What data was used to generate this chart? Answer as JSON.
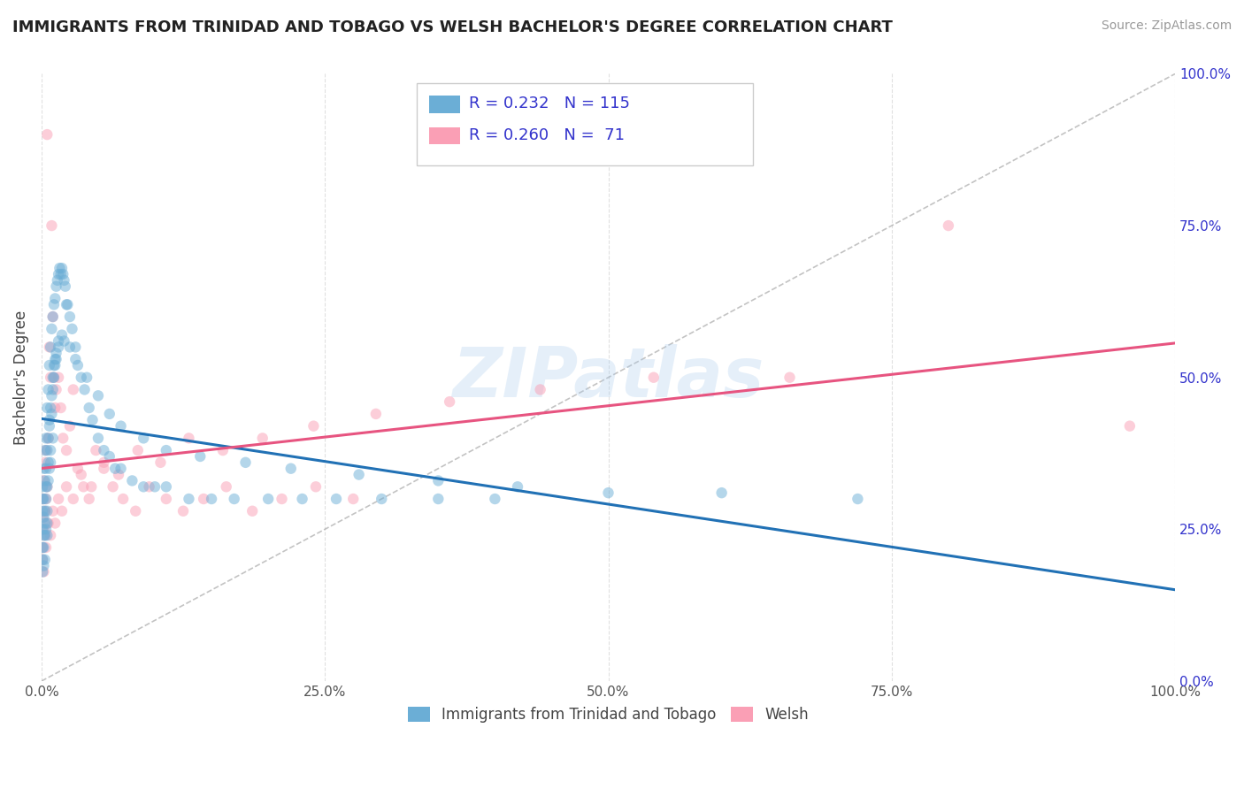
{
  "title": "IMMIGRANTS FROM TRINIDAD AND TOBAGO VS WELSH BACHELOR'S DEGREE CORRELATION CHART",
  "source": "Source: ZipAtlas.com",
  "xlabel": "Immigrants from Trinidad and Tobago",
  "ylabel": "Bachelor's Degree",
  "blue_label": "Immigrants from Trinidad and Tobago",
  "pink_label": "Welsh",
  "blue_R": 0.232,
  "blue_N": 115,
  "pink_R": 0.26,
  "pink_N": 71,
  "blue_color": "#6baed6",
  "pink_color": "#fa9fb5",
  "blue_line_color": "#2171b5",
  "pink_line_color": "#e75480",
  "dot_size": 80,
  "dot_alpha": 0.5,
  "blue_scatter_x": [
    0.001,
    0.001,
    0.001,
    0.001,
    0.001,
    0.002,
    0.002,
    0.002,
    0.002,
    0.003,
    0.003,
    0.003,
    0.003,
    0.003,
    0.004,
    0.004,
    0.004,
    0.004,
    0.005,
    0.005,
    0.005,
    0.005,
    0.006,
    0.006,
    0.006,
    0.007,
    0.007,
    0.007,
    0.008,
    0.008,
    0.008,
    0.009,
    0.009,
    0.01,
    0.01,
    0.01,
    0.011,
    0.011,
    0.012,
    0.012,
    0.013,
    0.013,
    0.014,
    0.015,
    0.015,
    0.016,
    0.017,
    0.018,
    0.019,
    0.02,
    0.021,
    0.022,
    0.023,
    0.025,
    0.027,
    0.03,
    0.032,
    0.035,
    0.038,
    0.042,
    0.045,
    0.05,
    0.055,
    0.06,
    0.065,
    0.07,
    0.08,
    0.09,
    0.1,
    0.11,
    0.13,
    0.15,
    0.17,
    0.2,
    0.23,
    0.26,
    0.3,
    0.35,
    0.4,
    0.001,
    0.001,
    0.002,
    0.002,
    0.003,
    0.004,
    0.005,
    0.005,
    0.006,
    0.007,
    0.008,
    0.009,
    0.01,
    0.011,
    0.012,
    0.013,
    0.015,
    0.018,
    0.02,
    0.025,
    0.03,
    0.04,
    0.05,
    0.06,
    0.07,
    0.09,
    0.11,
    0.14,
    0.18,
    0.22,
    0.28,
    0.35,
    0.42,
    0.5,
    0.6,
    0.72
  ],
  "blue_scatter_y": [
    0.3,
    0.32,
    0.28,
    0.25,
    0.22,
    0.35,
    0.3,
    0.27,
    0.24,
    0.38,
    0.33,
    0.28,
    0.24,
    0.2,
    0.4,
    0.35,
    0.3,
    0.25,
    0.45,
    0.38,
    0.32,
    0.26,
    0.48,
    0.4,
    0.33,
    0.52,
    0.43,
    0.35,
    0.55,
    0.45,
    0.36,
    0.58,
    0.47,
    0.6,
    0.5,
    0.4,
    0.62,
    0.52,
    0.63,
    0.53,
    0.65,
    0.53,
    0.66,
    0.67,
    0.55,
    0.68,
    0.67,
    0.68,
    0.67,
    0.66,
    0.65,
    0.62,
    0.62,
    0.6,
    0.58,
    0.55,
    0.52,
    0.5,
    0.48,
    0.45,
    0.43,
    0.4,
    0.38,
    0.37,
    0.35,
    0.35,
    0.33,
    0.32,
    0.32,
    0.32,
    0.3,
    0.3,
    0.3,
    0.3,
    0.3,
    0.3,
    0.3,
    0.3,
    0.3,
    0.2,
    0.18,
    0.22,
    0.19,
    0.26,
    0.32,
    0.28,
    0.24,
    0.36,
    0.42,
    0.38,
    0.44,
    0.48,
    0.5,
    0.52,
    0.54,
    0.56,
    0.57,
    0.56,
    0.55,
    0.53,
    0.5,
    0.47,
    0.44,
    0.42,
    0.4,
    0.38,
    0.37,
    0.36,
    0.35,
    0.34,
    0.33,
    0.32,
    0.31,
    0.31,
    0.3
  ],
  "pink_scatter_x": [
    0.001,
    0.001,
    0.002,
    0.002,
    0.003,
    0.003,
    0.004,
    0.004,
    0.005,
    0.005,
    0.006,
    0.007,
    0.008,
    0.009,
    0.01,
    0.011,
    0.012,
    0.013,
    0.015,
    0.017,
    0.019,
    0.022,
    0.025,
    0.028,
    0.032,
    0.037,
    0.042,
    0.048,
    0.055,
    0.063,
    0.072,
    0.083,
    0.095,
    0.11,
    0.125,
    0.143,
    0.163,
    0.186,
    0.212,
    0.242,
    0.275,
    0.001,
    0.001,
    0.002,
    0.003,
    0.004,
    0.006,
    0.008,
    0.01,
    0.012,
    0.015,
    0.018,
    0.022,
    0.028,
    0.035,
    0.044,
    0.055,
    0.068,
    0.085,
    0.105,
    0.13,
    0.16,
    0.195,
    0.24,
    0.295,
    0.36,
    0.44,
    0.54,
    0.66,
    0.8,
    0.96
  ],
  "pink_scatter_y": [
    0.3,
    0.27,
    0.33,
    0.25,
    0.36,
    0.28,
    0.38,
    0.3,
    0.9,
    0.32,
    0.4,
    0.55,
    0.5,
    0.75,
    0.6,
    0.5,
    0.45,
    0.48,
    0.5,
    0.45,
    0.4,
    0.38,
    0.42,
    0.48,
    0.35,
    0.32,
    0.3,
    0.38,
    0.35,
    0.32,
    0.3,
    0.28,
    0.32,
    0.3,
    0.28,
    0.3,
    0.32,
    0.28,
    0.3,
    0.32,
    0.3,
    0.22,
    0.2,
    0.18,
    0.24,
    0.22,
    0.26,
    0.24,
    0.28,
    0.26,
    0.3,
    0.28,
    0.32,
    0.3,
    0.34,
    0.32,
    0.36,
    0.34,
    0.38,
    0.36,
    0.4,
    0.38,
    0.4,
    0.42,
    0.44,
    0.46,
    0.48,
    0.5,
    0.5,
    0.75,
    0.42
  ],
  "xlim": [
    0,
    1.0
  ],
  "ylim": [
    0,
    1.0
  ],
  "xticks": [
    0,
    0.25,
    0.5,
    0.75,
    1.0
  ],
  "xticklabels": [
    "0.0%",
    "25.0%",
    "50.0%",
    "75.0%",
    "100.0%"
  ],
  "yticks_right": [
    0,
    0.25,
    0.5,
    0.75,
    1.0
  ],
  "yticklabels_right": [
    "0.0%",
    "25.0%",
    "50.0%",
    "75.0%",
    "100.0%"
  ],
  "grid_color": "#dddddd",
  "background_color": "#ffffff",
  "watermark": "ZIPatlas",
  "legend_R_color": "#3333cc",
  "legend_box_edge": "#cccccc"
}
